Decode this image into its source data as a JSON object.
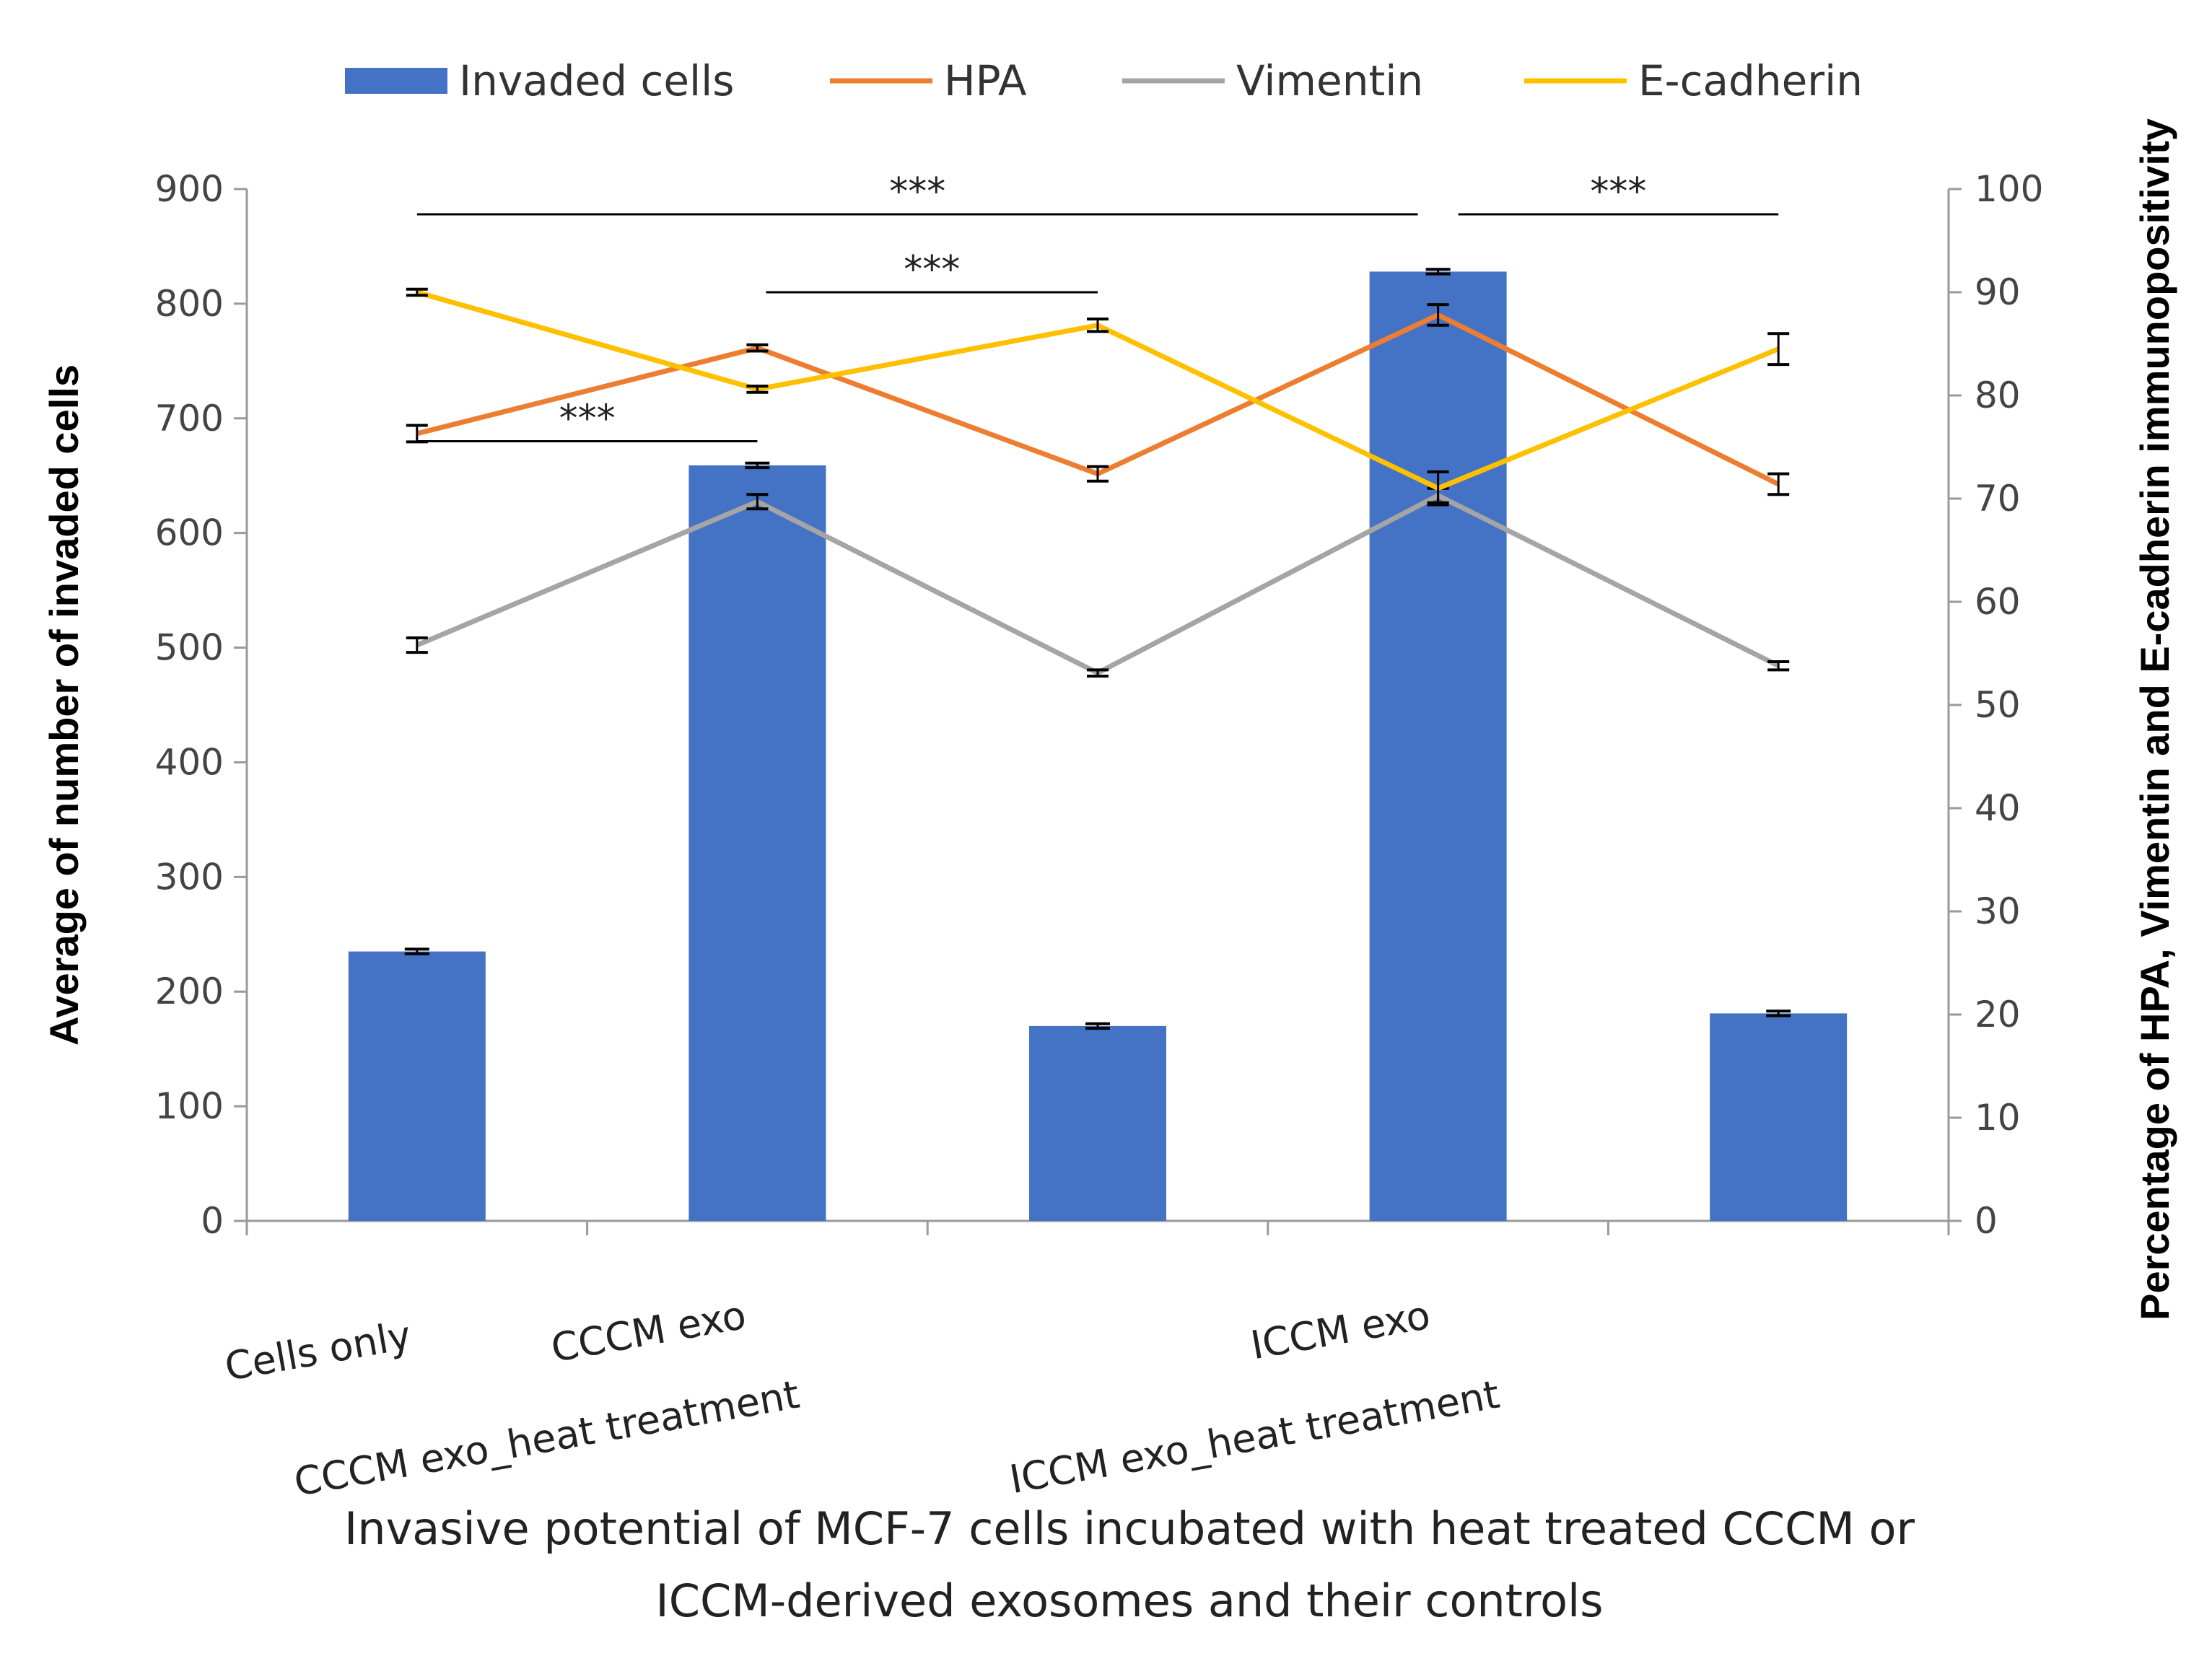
{
  "chart_data": {
    "type": "bar",
    "categories": [
      "Cells only",
      "CCCM exo",
      "CCCM exo_heat treatment",
      "ICCM exo",
      "ICCM exo_heat treatment"
    ],
    "x_title_lines": [
      "Invasive potential of MCF-7 cells incubated with heat treated CCCM or",
      "ICCM-derived exosomes and their controls"
    ],
    "ylabel": "Average of  number of invaded cells",
    "ylabel_right": "Percentage of HPA, Vimentin and E-cadherin immunopositivity",
    "ylim": [
      0,
      900
    ],
    "yticks": [
      "0",
      "100",
      "200",
      "300",
      "400",
      "500",
      "600",
      "700",
      "800",
      "900"
    ],
    "ylim_right": [
      0,
      100
    ],
    "yticks_right": [
      "0",
      "10",
      "20",
      "30",
      "40",
      "50",
      "60",
      "70",
      "80",
      "90",
      "100"
    ],
    "bars": {
      "name": "Invaded cells",
      "axis": "left",
      "values": [
        235,
        659,
        170,
        828,
        181
      ],
      "errors": [
        2,
        2,
        2,
        2,
        2
      ],
      "color": "#4472C4"
    },
    "series": [
      {
        "name": "HPA",
        "axis": "right",
        "values": [
          76.3,
          84.6,
          72.4,
          87.8,
          71.4
        ],
        "errors": [
          0.8,
          0.3,
          0.7,
          1.0,
          1.0
        ],
        "color": "#ED7D31"
      },
      {
        "name": "Vimentin",
        "axis": "right",
        "values": [
          55.8,
          69.7,
          53.1,
          70.3,
          53.8
        ],
        "errors": [
          0.7,
          0.7,
          0.3,
          0.7,
          0.4
        ],
        "color": "#A5A5A5"
      },
      {
        "name": "E-cadherin",
        "axis": "right",
        "values": [
          90.0,
          80.6,
          86.8,
          71.0,
          84.5
        ],
        "errors": [
          0.3,
          0.3,
          0.6,
          1.6,
          1.5
        ],
        "color": "#FFC000"
      }
    ],
    "significance": [
      {
        "label": "***",
        "from": 0,
        "to": 3,
        "level": 878
      },
      {
        "label": "***",
        "from": 3,
        "to": 4,
        "level": 878
      },
      {
        "label": "***",
        "from": 1,
        "to": 2,
        "level": 810
      },
      {
        "label": "***",
        "from": 0,
        "to": 1,
        "level": 680
      }
    ],
    "legend_position": "top"
  }
}
